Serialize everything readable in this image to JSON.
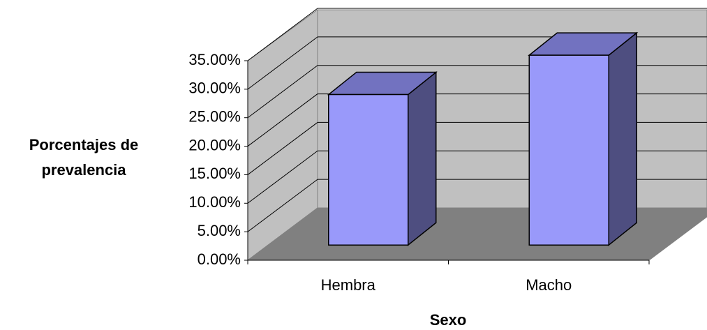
{
  "chart_data": {
    "type": "bar3d",
    "categories": [
      "Hembra",
      "Macho"
    ],
    "values": [
      26.4,
      33.3
    ],
    "color": "#9999fa",
    "xlabel": "Sexo",
    "ylabel": "Porcentajes de prevalencia",
    "ylim": [
      0,
      35
    ],
    "yticks": [
      {
        "value": 0,
        "label": "0.00%"
      },
      {
        "value": 5,
        "label": "5.00%"
      },
      {
        "value": 10,
        "label": "10.00%"
      },
      {
        "value": 15,
        "label": "15.00%"
      },
      {
        "value": 20,
        "label": "20.00%"
      },
      {
        "value": 25,
        "label": "25.00%"
      },
      {
        "value": 30,
        "label": "30.00%"
      },
      {
        "value": 35,
        "label": "35.00%"
      }
    ],
    "grid": true
  }
}
